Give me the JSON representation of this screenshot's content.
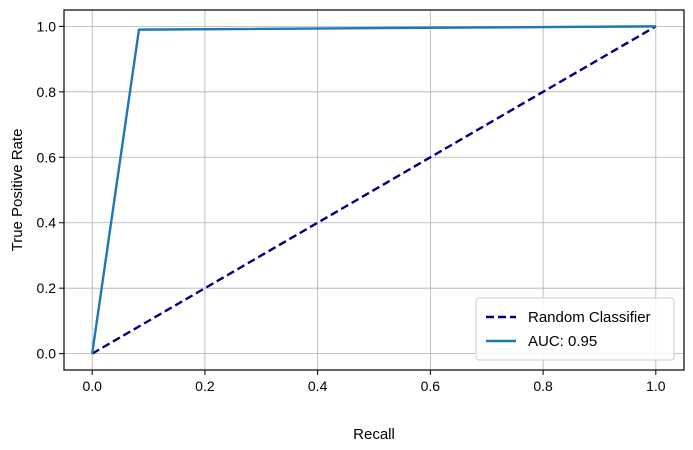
{
  "chart_data": {
    "type": "line",
    "title": "",
    "xlabel": "Recall",
    "ylabel": "True Positive Rate",
    "xlim": [
      -0.05,
      1.05
    ],
    "ylim": [
      -0.05,
      1.05
    ],
    "xticks": [
      0.0,
      0.2,
      0.4,
      0.6,
      0.8,
      1.0
    ],
    "xtick_labels": [
      "0.0",
      "0.2",
      "0.4",
      "0.6",
      "0.8",
      "1.0"
    ],
    "yticks": [
      0.0,
      0.2,
      0.4,
      0.6,
      0.8,
      1.0
    ],
    "ytick_labels": [
      "0.0",
      "0.2",
      "0.4",
      "0.6",
      "0.8",
      "1.0"
    ],
    "grid": true,
    "legend_position": "lower-right",
    "series": [
      {
        "name": "Random Classifier",
        "style": "dashed",
        "color": "#000080",
        "x": [
          0.0,
          1.0
        ],
        "y": [
          0.0,
          1.0
        ]
      },
      {
        "name": "AUC: 0.95",
        "style": "solid",
        "color": "#1f77b4",
        "x": [
          0.0,
          0.083,
          1.0
        ],
        "y": [
          0.0,
          0.99,
          1.0
        ]
      }
    ]
  }
}
